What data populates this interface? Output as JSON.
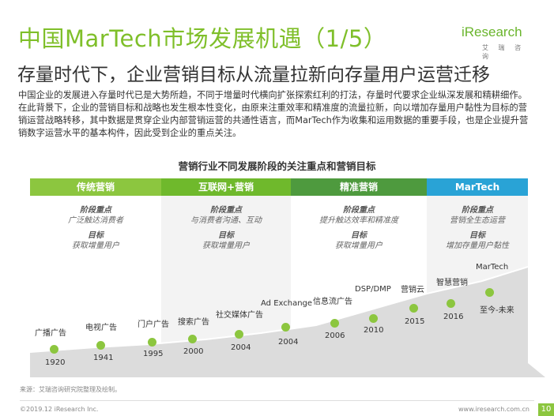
{
  "header": {
    "title": "中国MarTech市场发展机遇（1/5）",
    "subtitle": "存量时代下，企业营销目标从流量拉新向存量用户运营迁移",
    "logo_text": "iResearch",
    "logo_cn": "艾 瑞 咨 询"
  },
  "intro": "中国企业的发展进入存量时代已是大势所趋，不同于增量时代横向扩张探索红利的打法，存量时代要求企业纵深发展和精耕细作。在此背景下，企业的营销目标和战略也发生根本性变化，由原来注重效率和精准度的流量拉新，向以增加存量用户黏性为目标的营销运营战略转移，其中数据是贯穿企业内部营销运营的共通性语言，而MarTech作为收集和运用数据的重要手段，也是企业提升营销数字运营水平的基本构件，因此受到企业的重点关注。",
  "diagram": {
    "title": "营销行业不同发展阶段的关注重点和营销目标",
    "stages": [
      {
        "name": "传统营销",
        "focus_label": "阶段重点",
        "focus": "广泛触达消费者",
        "goal_label": "目标",
        "goal": "获取增量用户",
        "color": "#8cc63f"
      },
      {
        "name": "互联网+营销",
        "focus_label": "阶段重点",
        "focus": "与消费者沟通、互动",
        "goal_label": "目标",
        "goal": "获取增量用户",
        "color": "#6fb92c"
      },
      {
        "name": "精准营销",
        "focus_label": "阶段重点",
        "focus": "提升触达效率和精准度",
        "goal_label": "目标",
        "goal": "获取增量用户",
        "color": "#4e9a3e"
      },
      {
        "name": "MarTech",
        "focus_label": "阶段重点",
        "focus": "营销全生态运营",
        "goal_label": "目标",
        "goal": "增加存量用户黏性",
        "color": "#29a3d6"
      }
    ],
    "milestones": [
      {
        "label": "广播广告",
        "year": "1920"
      },
      {
        "label": "电视广告",
        "year": "1941"
      },
      {
        "label": "门户广告",
        "year": "1995"
      },
      {
        "label": "搜索广告",
        "year": "2000"
      },
      {
        "label": "社交媒体广告",
        "year": "2004"
      },
      {
        "label": "Ad Exchange",
        "year": "2004"
      },
      {
        "label": "信息流广告",
        "year": "2006"
      },
      {
        "label": "DSP/DMP",
        "year": "2010"
      },
      {
        "label": "营销云",
        "year": "2015"
      },
      {
        "label": "智慧营销",
        "year": "2016"
      },
      {
        "label": "MarTech",
        "year": "至今-未来"
      }
    ]
  },
  "footer": {
    "source": "来源：艾瑞咨询研究院整理及绘制。",
    "copyright": "©2019.12 iResearch Inc.",
    "site": "www.iresearch.com.cn",
    "page": "10"
  },
  "colors": {
    "accent": "#8cc63f",
    "martech": "#29a3d6",
    "timeline_bg": "#dcdcdc"
  }
}
